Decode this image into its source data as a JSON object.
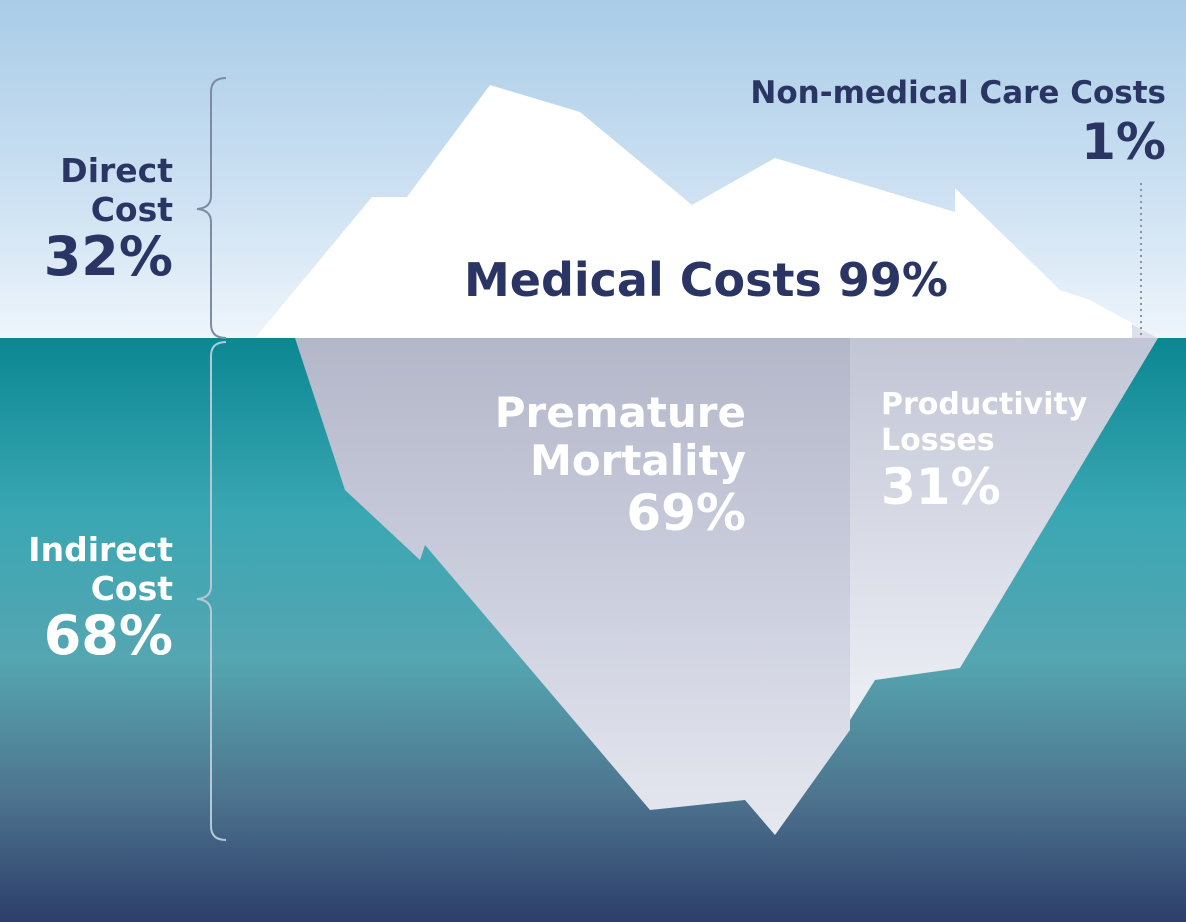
{
  "direct": {
    "line1": "Direct",
    "line2": "Cost",
    "pct": "32%"
  },
  "indirect": {
    "line1": "Indirect",
    "line2": "Cost",
    "pct": "68%"
  },
  "medical": {
    "label": "Medical Costs 99%"
  },
  "non_medical": {
    "label": "Non-medical Care Costs",
    "pct": "1%"
  },
  "premature": {
    "line1": "Premature",
    "line2": "Mortality",
    "pct": "69%"
  },
  "productivity": {
    "line1": "Productivity",
    "line2": "Losses",
    "pct": "31%"
  },
  "colors": {
    "text_dark": "#2a3563",
    "iceberg_top": "#ffffff",
    "iceberg_under": "#c4c8d8",
    "water_top": "#0d8a96",
    "water_bottom": "#2f3f6b",
    "sky_top": "#a7cbe6",
    "sky_bottom": "#e8f1fa"
  }
}
